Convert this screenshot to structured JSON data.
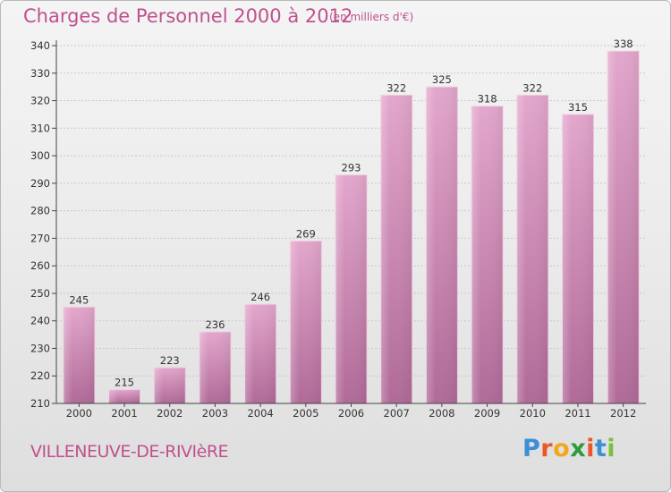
{
  "header": {
    "title": "Charges de Personnel 2000 à 2012",
    "subtitle": "(en milliers d'€)"
  },
  "footer": {
    "place": "VILLENEUVE-DE-RIVIèRE",
    "logo_text": "Proxiti",
    "logo_letters": [
      {
        "ch": "P",
        "color": "#3a8fd6"
      },
      {
        "ch": "r",
        "color": "#e9572b"
      },
      {
        "ch": "o",
        "color": "#f2a81d"
      },
      {
        "ch": "x",
        "color": "#2e9a3e"
      },
      {
        "ch": "i",
        "color": "#e9572b"
      },
      {
        "ch": "t",
        "color": "#3a8fd6"
      },
      {
        "ch": "i",
        "color": "#7cbf3a"
      }
    ]
  },
  "colors": {
    "title": "#c0508e",
    "bar_top": "#e3a6cc",
    "bar_bottom": "#b06a98",
    "bar_edge": "#f2cde2",
    "grid": "#c8c8c8",
    "axis": "#444444"
  },
  "chart_data": {
    "type": "bar",
    "categories": [
      "2000",
      "2001",
      "2002",
      "2003",
      "2004",
      "2005",
      "2006",
      "2007",
      "2008",
      "2009",
      "2010",
      "2011",
      "2012"
    ],
    "values": [
      245,
      215,
      223,
      236,
      246,
      269,
      293,
      322,
      325,
      318,
      322,
      315,
      338
    ],
    "ylim": [
      210,
      340
    ],
    "yticks": [
      210,
      220,
      230,
      240,
      250,
      260,
      270,
      280,
      290,
      300,
      310,
      320,
      330,
      340
    ],
    "grid": true,
    "data_labels": true
  }
}
